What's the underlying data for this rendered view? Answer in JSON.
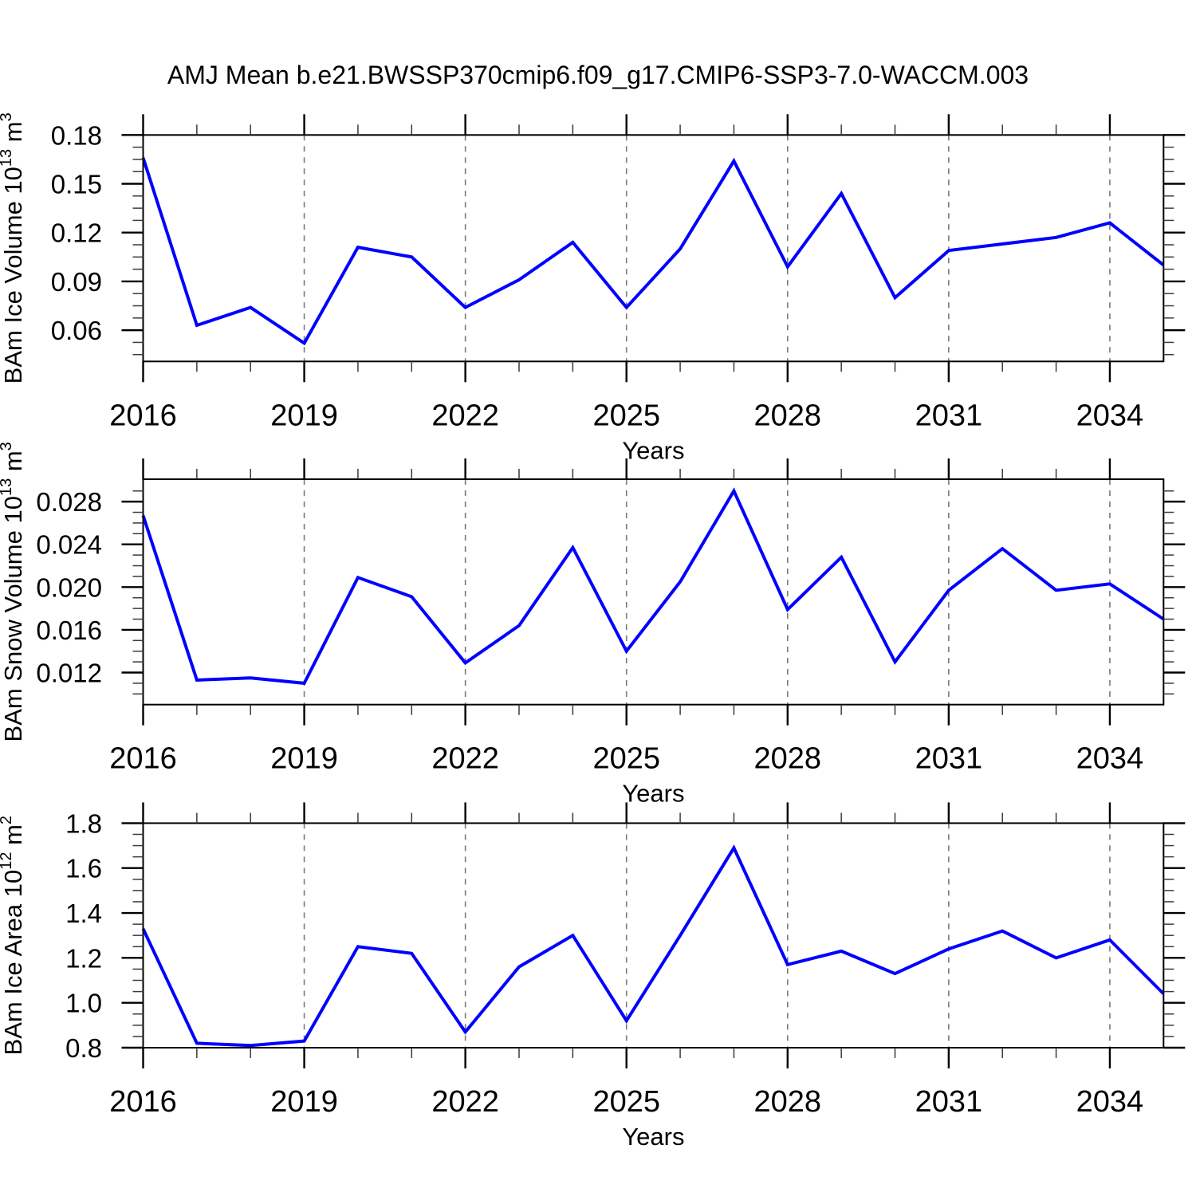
{
  "title": "AMJ Mean b.e21.BWSSP370cmip6.f09_g17.CMIP6-SSP3-7.0-WACCM.003",
  "colors": {
    "series_line": "#0000ff",
    "grid_dashed": "#7a7a7a",
    "frame": "#000000",
    "minor_tick": "#3a3a3a",
    "text": "#000000",
    "background": "#ffffff"
  },
  "x_axis": {
    "label": "Years",
    "xlim": [
      2016,
      2035
    ],
    "major_ticks": [
      2016,
      2019,
      2022,
      2025,
      2028,
      2031,
      2034
    ],
    "major_tick_labels": [
      "2016",
      "2019",
      "2022",
      "2025",
      "2028",
      "2031",
      "2034"
    ],
    "minor_step": 1
  },
  "chart_data": [
    {
      "type": "line",
      "title": "AMJ Mean b.e21.BWSSP370cmip6.f09_g17.CMIP6-SSP3-7.0-WACCM.003",
      "ylabel": "BAm Ice Volume 10^13 m^3",
      "ylabel_parts": [
        {
          "text": "BAm Ice Volume 10",
          "sup": false
        },
        {
          "text": "13",
          "sup": true
        },
        {
          "text": " m",
          "sup": false
        },
        {
          "text": "3",
          "sup": true
        }
      ],
      "xlabel": "Years",
      "x": [
        2016,
        2017,
        2018,
        2019,
        2020,
        2021,
        2022,
        2023,
        2024,
        2025,
        2026,
        2027,
        2028,
        2029,
        2030,
        2031,
        2032,
        2033,
        2034,
        2035
      ],
      "values": [
        0.166,
        0.063,
        0.074,
        0.052,
        0.111,
        0.105,
        0.074,
        0.091,
        0.114,
        0.074,
        0.11,
        0.164,
        0.099,
        0.144,
        0.08,
        0.109,
        0.113,
        0.117,
        0.126,
        0.1
      ],
      "ylim": [
        0.0408,
        0.18
      ],
      "y_major_ticks": [
        0.06,
        0.09,
        0.12,
        0.15,
        0.18
      ],
      "y_major_tick_labels": [
        "0.06",
        "0.09",
        "0.12",
        "0.15",
        "0.18"
      ],
      "y_minor_step": 0.0075,
      "grid": "vertical-dashed",
      "legend": "none"
    },
    {
      "type": "line",
      "title": "",
      "ylabel": "BAm Snow Volume 10^13 m^3",
      "ylabel_parts": [
        {
          "text": "BAm Snow Volume 10",
          "sup": false
        },
        {
          "text": "13",
          "sup": true
        },
        {
          "text": " m",
          "sup": false
        },
        {
          "text": "3",
          "sup": true
        }
      ],
      "xlabel": "Years",
      "x": [
        2016,
        2017,
        2018,
        2019,
        2020,
        2021,
        2022,
        2023,
        2024,
        2025,
        2026,
        2027,
        2028,
        2029,
        2030,
        2031,
        2032,
        2033,
        2034,
        2035
      ],
      "values": [
        0.0267,
        0.0113,
        0.0115,
        0.011,
        0.0209,
        0.0191,
        0.0129,
        0.0164,
        0.0237,
        0.014,
        0.0205,
        0.029,
        0.0179,
        0.0228,
        0.013,
        0.0197,
        0.0236,
        0.0197,
        0.0203,
        0.017
      ],
      "ylim": [
        0.009,
        0.0301
      ],
      "y_major_ticks": [
        0.012,
        0.016,
        0.02,
        0.024,
        0.028
      ],
      "y_major_tick_labels": [
        "0.012",
        "0.016",
        "0.020",
        "0.024",
        "0.028"
      ],
      "y_minor_step": 0.001,
      "grid": "vertical-dashed",
      "legend": "none"
    },
    {
      "type": "line",
      "title": "",
      "ylabel": "BAm Ice Area 10^12 m^2",
      "ylabel_parts": [
        {
          "text": "BAm Ice Area 10",
          "sup": false
        },
        {
          "text": "12",
          "sup": true
        },
        {
          "text": " m",
          "sup": false
        },
        {
          "text": "2",
          "sup": true
        }
      ],
      "xlabel": "Years",
      "x": [
        2016,
        2017,
        2018,
        2019,
        2020,
        2021,
        2022,
        2023,
        2024,
        2025,
        2026,
        2027,
        2028,
        2029,
        2030,
        2031,
        2032,
        2033,
        2034,
        2035
      ],
      "values": [
        1.33,
        0.82,
        0.81,
        0.83,
        1.25,
        1.22,
        0.87,
        1.16,
        1.3,
        0.92,
        1.3,
        1.69,
        1.17,
        1.23,
        1.13,
        1.24,
        1.32,
        1.2,
        1.28,
        1.04
      ],
      "ylim": [
        0.8,
        1.8
      ],
      "y_major_ticks": [
        0.8,
        1.0,
        1.2,
        1.4,
        1.6,
        1.8
      ],
      "y_major_tick_labels": [
        "0.8",
        "1.0",
        "1.2",
        "1.4",
        "1.6",
        "1.8"
      ],
      "y_minor_step": 0.05,
      "grid": "vertical-dashed",
      "legend": "none"
    }
  ]
}
